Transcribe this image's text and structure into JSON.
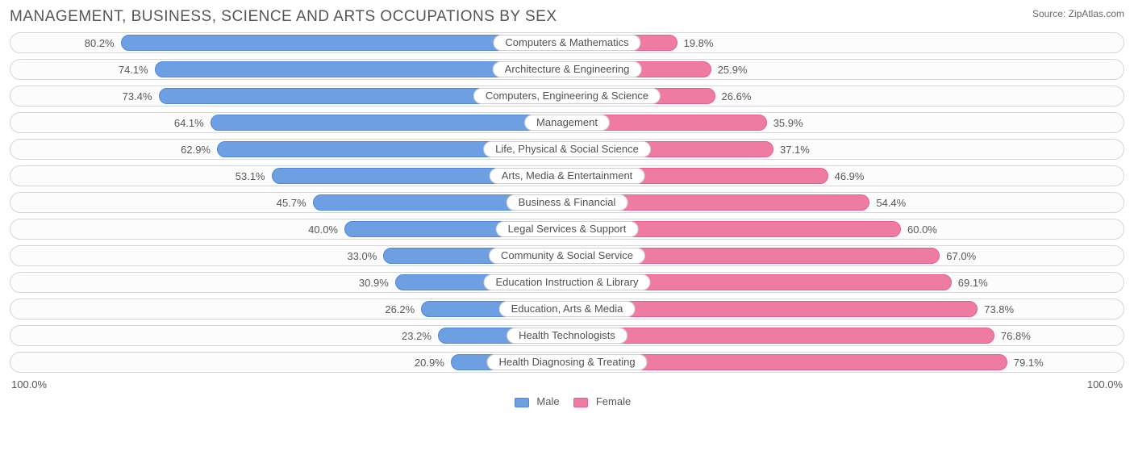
{
  "title": "MANAGEMENT, BUSINESS, SCIENCE AND ARTS OCCUPATIONS BY SEX",
  "source_label": "Source:",
  "source_name": "ZipAtlas.com",
  "colors": {
    "male_fill": "#6d9fe2",
    "male_border": "#4f87d6",
    "female_fill": "#ee7ba2",
    "female_border": "#e85f8e",
    "track_border": "#d6d6d8",
    "track_bg": "#fcfcfc",
    "text": "#58585c",
    "title_color": "#555558",
    "background": "#ffffff"
  },
  "axis": {
    "left_label": "100.0%",
    "right_label": "100.0%",
    "max": 100.0
  },
  "legend": {
    "male": "Male",
    "female": "Female"
  },
  "rows": [
    {
      "category": "Computers & Mathematics",
      "male": 80.2,
      "female": 19.8
    },
    {
      "category": "Architecture & Engineering",
      "male": 74.1,
      "female": 25.9
    },
    {
      "category": "Computers, Engineering & Science",
      "male": 73.4,
      "female": 26.6
    },
    {
      "category": "Management",
      "male": 64.1,
      "female": 35.9
    },
    {
      "category": "Life, Physical & Social Science",
      "male": 62.9,
      "female": 37.1
    },
    {
      "category": "Arts, Media & Entertainment",
      "male": 53.1,
      "female": 46.9
    },
    {
      "category": "Business & Financial",
      "male": 45.7,
      "female": 54.4
    },
    {
      "category": "Legal Services & Support",
      "male": 40.0,
      "female": 60.0
    },
    {
      "category": "Community & Social Service",
      "male": 33.0,
      "female": 67.0
    },
    {
      "category": "Education Instruction & Library",
      "male": 30.9,
      "female": 69.1
    },
    {
      "category": "Education, Arts & Media",
      "male": 26.2,
      "female": 73.8
    },
    {
      "category": "Health Technologists",
      "male": 23.2,
      "female": 76.8
    },
    {
      "category": "Health Diagnosing & Treating",
      "male": 20.9,
      "female": 79.1
    }
  ]
}
